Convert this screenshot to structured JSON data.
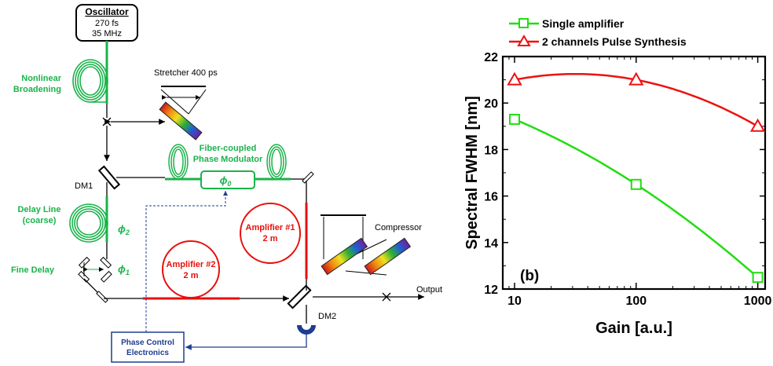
{
  "diagram": {
    "oscillator": {
      "title": "Oscillator",
      "line1": "270 fs",
      "line2": "35 MHz"
    },
    "nonlinear": {
      "line1": "Nonlinear",
      "line2": "Broadening"
    },
    "stretcher": "Stretcher 400 ps",
    "modulator": {
      "line1": "Fiber-coupled",
      "line2": "Phase Modulator",
      "phi": "ϕ",
      "phi_sub": "0"
    },
    "dm1": "DM1",
    "dm2": "DM2",
    "delay_line": {
      "line1": "Delay Line",
      "line2": "(coarse)"
    },
    "phi2": {
      "phi": "ϕ",
      "sub": "2"
    },
    "phi1": {
      "phi": "ϕ",
      "sub": "1"
    },
    "fine_delay": "Fine Delay",
    "amp1": {
      "line1": "Amplifier #1",
      "line2": "2 m"
    },
    "amp2": {
      "line1": "Amplifier #2",
      "line2": "2 m"
    },
    "compressor": "Compressor",
    "output": "Output",
    "pce": {
      "line1": "Phase Control",
      "line2": "Electronics"
    },
    "colors": {
      "fiber_green": "#1ab34a",
      "fiber_red": "#e8100c",
      "control_blue": "#1f3d8f"
    }
  },
  "chart_data": {
    "type": "line",
    "panel_label": "(b)",
    "xlabel": "Gain  [a.u.]",
    "ylabel": "Spectral FWHM  [nm]",
    "xscale": "log",
    "xlim": [
      8,
      1150
    ],
    "ylim": [
      12,
      22
    ],
    "xticks": [
      10,
      100,
      1000
    ],
    "xtick_labels": [
      "10",
      "100",
      "1000"
    ],
    "yticks": [
      12,
      14,
      16,
      18,
      20,
      22
    ],
    "ytick_labels": [
      "12",
      "14",
      "16",
      "18",
      "20",
      "22"
    ],
    "legend_position": "top-left, outside plot",
    "series": [
      {
        "name": "Single amplifier",
        "color": "#22dd11",
        "marker": "square",
        "x": [
          10,
          100,
          1000
        ],
        "y": [
          19.3,
          16.5,
          12.5
        ]
      },
      {
        "name": "2 channels Pulse Synthesis",
        "color": "#ee1111",
        "marker": "triangle",
        "x": [
          10,
          100,
          1000
        ],
        "y": [
          21.0,
          21.0,
          19.0
        ]
      }
    ]
  }
}
